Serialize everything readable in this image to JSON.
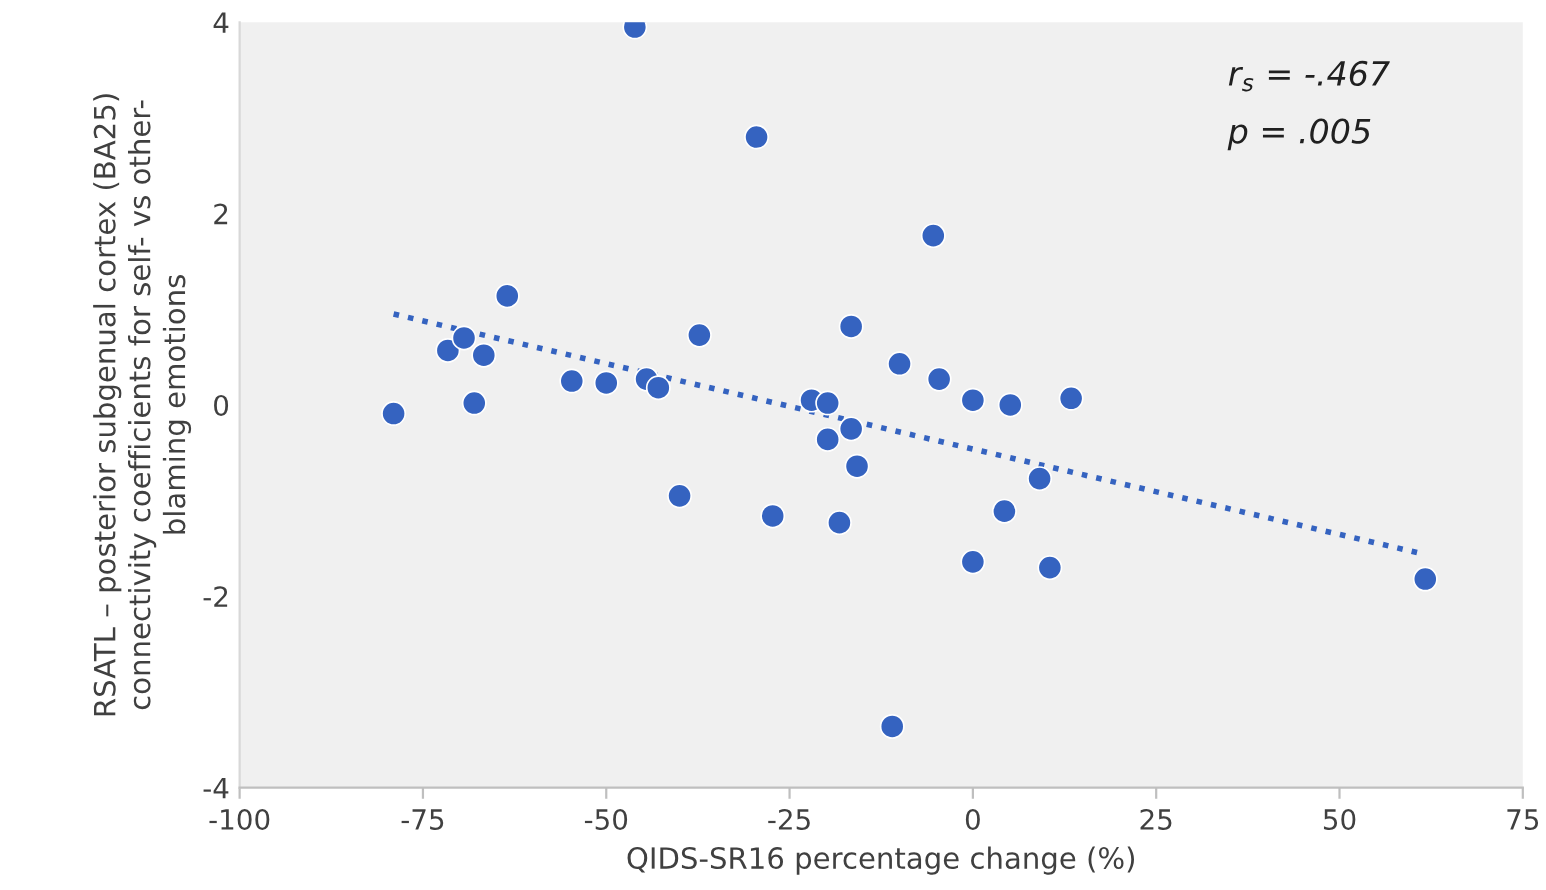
{
  "chart_data": {
    "type": "scatter",
    "xlabel": "QIDS-SR16 percentage change (%)",
    "ylabel": "RSATL – posterior subgenual cortex (BA25)\nconnectivity coefficients for self- vs other-\nblaming emotions",
    "xlim": [
      -100,
      75
    ],
    "xticks": [
      -100,
      -75,
      -50,
      -25,
      0,
      25,
      50,
      75
    ],
    "ylim": [
      -4,
      4
    ],
    "yticks": [
      -4,
      -2,
      0,
      2,
      4
    ],
    "grid": false,
    "legend": false,
    "series": [
      {
        "marker": "circle",
        "color": "#3563c0",
        "x": [
          -79,
          -71.6,
          -69.4,
          -68,
          -66.7,
          -63.5,
          -54.7,
          -50,
          -46.1,
          -44.5,
          -42.9,
          -37.3,
          -40,
          -29.5,
          -27.3,
          -22,
          -19.8,
          -19.8,
          -18.2,
          -16.6,
          -16.6,
          -15.8,
          -11,
          -10,
          -5.4,
          -4.6,
          0,
          0,
          4.3,
          5.1,
          9.1,
          10.5,
          13.4,
          61.7
        ],
        "values": [
          -0.09,
          0.57,
          0.7,
          0.02,
          0.52,
          1.14,
          0.25,
          0.23,
          3.95,
          0.27,
          0.18,
          0.73,
          -0.95,
          2.8,
          -1.16,
          0.05,
          0.02,
          -0.36,
          -1.23,
          0.82,
          -0.25,
          -0.64,
          -3.36,
          0.43,
          1.77,
          0.27,
          0.05,
          -1.64,
          -1.11,
          0.0,
          -0.77,
          -1.7,
          0.07,
          -1.82
        ]
      },
      {
        "type": "line",
        "color": "#3563c0",
        "line_style": "dotted",
        "x": [
          -79,
          61
        ],
        "values": [
          0.95,
          -1.55
        ]
      }
    ],
    "annotations": [
      "r$_{s}$ = -.467",
      "p = .005"
    ]
  }
}
